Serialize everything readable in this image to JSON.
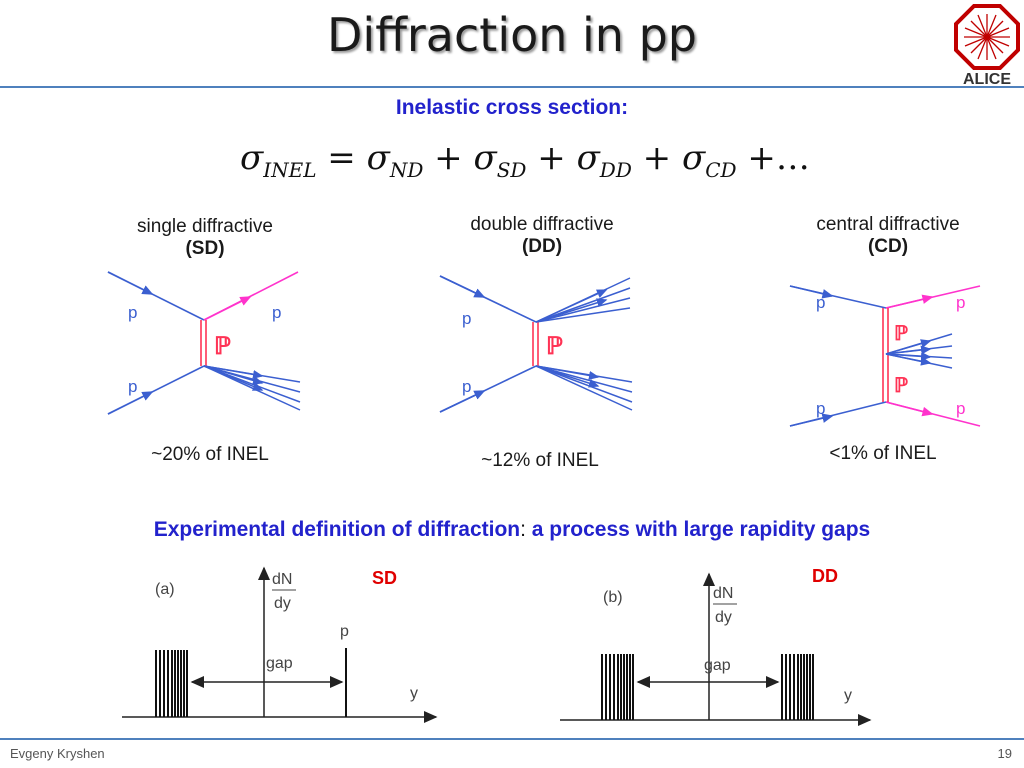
{
  "title": "Diffraction in pp",
  "logo_text": "ALICE",
  "section_heading": "Inelastic cross section:",
  "formula": {
    "lhs_sub": "INEL",
    "terms": [
      {
        "sub": "ND"
      },
      {
        "sub": "SD"
      },
      {
        "sub": "DD"
      },
      {
        "sub": "CD"
      }
    ],
    "ellipsis": "…"
  },
  "diagrams": [
    {
      "name": "single diffractive",
      "abbr": "(SD)",
      "fraction": "~20% of INEL",
      "p_labels": [
        "p",
        "p",
        "p"
      ],
      "pomeron": "ℙ"
    },
    {
      "name": "double diffractive",
      "abbr": "(DD)",
      "fraction": "~12% of INEL",
      "p_labels": [
        "p",
        "p"
      ],
      "pomeron": "ℙ"
    },
    {
      "name": "central diffractive",
      "abbr": "(CD)",
      "fraction": "<1% of INEL",
      "p_labels": [
        "p",
        "p",
        "p",
        "p"
      ],
      "pomeron": "ℙ"
    }
  ],
  "experimental": {
    "part1": "Experimental definition of diffraction",
    "colon": ":",
    "part2": " a process with large rapidity gaps"
  },
  "gap_plots": [
    {
      "tag": "SD",
      "panel": "(a)",
      "ylabel_num": "dN",
      "ylabel_den": "dy",
      "gap": "gap",
      "xlabel": "y",
      "proton": "p"
    },
    {
      "tag": "DD",
      "panel": "(b)",
      "ylabel_num": "dN",
      "ylabel_den": "dy",
      "gap": "gap",
      "xlabel": "y"
    }
  ],
  "colors": {
    "accent_blue": "#2222cc",
    "rule": "#4f81bd",
    "red": "#e00000",
    "line_blue": "#3b5fd0",
    "magenta": "#ff33cc"
  },
  "footer": {
    "author": "Evgeny Kryshen",
    "page": "19"
  }
}
